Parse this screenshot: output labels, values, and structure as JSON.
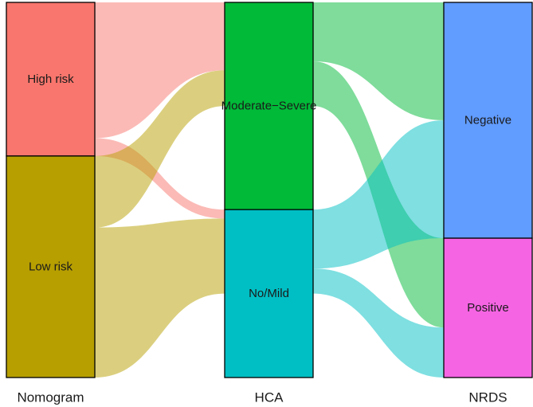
{
  "chart_data": {
    "type": "alluvial",
    "axes": [
      "Nomogram",
      "HCA",
      "NRDS"
    ],
    "stages": [
      {
        "name": "Nomogram",
        "nodes": [
          {
            "label": "High risk",
            "color": "#F8766D"
          },
          {
            "label": "Low risk",
            "color": "#B79F00"
          }
        ]
      },
      {
        "name": "HCA",
        "nodes": [
          {
            "label": "Moderate−Severe",
            "color": "#00BA38"
          },
          {
            "label": "No/Mild",
            "color": "#00BFC4"
          }
        ]
      },
      {
        "name": "NRDS",
        "nodes": [
          {
            "label": "Negative",
            "color": "#619CFF"
          },
          {
            "label": "Positive",
            "color": "#F564E3"
          }
        ]
      }
    ],
    "flows": [
      {
        "stage": 0,
        "from": "High risk",
        "to": "Moderate−Severe",
        "value": 38
      },
      {
        "stage": 0,
        "from": "High risk",
        "to": "No/Mild",
        "value": 5
      },
      {
        "stage": 0,
        "from": "Low risk",
        "to": "Moderate−Severe",
        "value": 20
      },
      {
        "stage": 0,
        "from": "Low risk",
        "to": "No/Mild",
        "value": 42
      },
      {
        "stage": 1,
        "from": "Moderate−Severe",
        "to": "Negative",
        "value": 33
      },
      {
        "stage": 1,
        "from": "Moderate−Severe",
        "to": "Positive",
        "value": 25
      },
      {
        "stage": 1,
        "from": "No/Mild",
        "to": "Negative",
        "value": 33
      },
      {
        "stage": 1,
        "from": "No/Mild",
        "to": "Positive",
        "value": 14
      }
    ],
    "flow_opacity": 0.5,
    "grid": false,
    "legend": "none"
  }
}
